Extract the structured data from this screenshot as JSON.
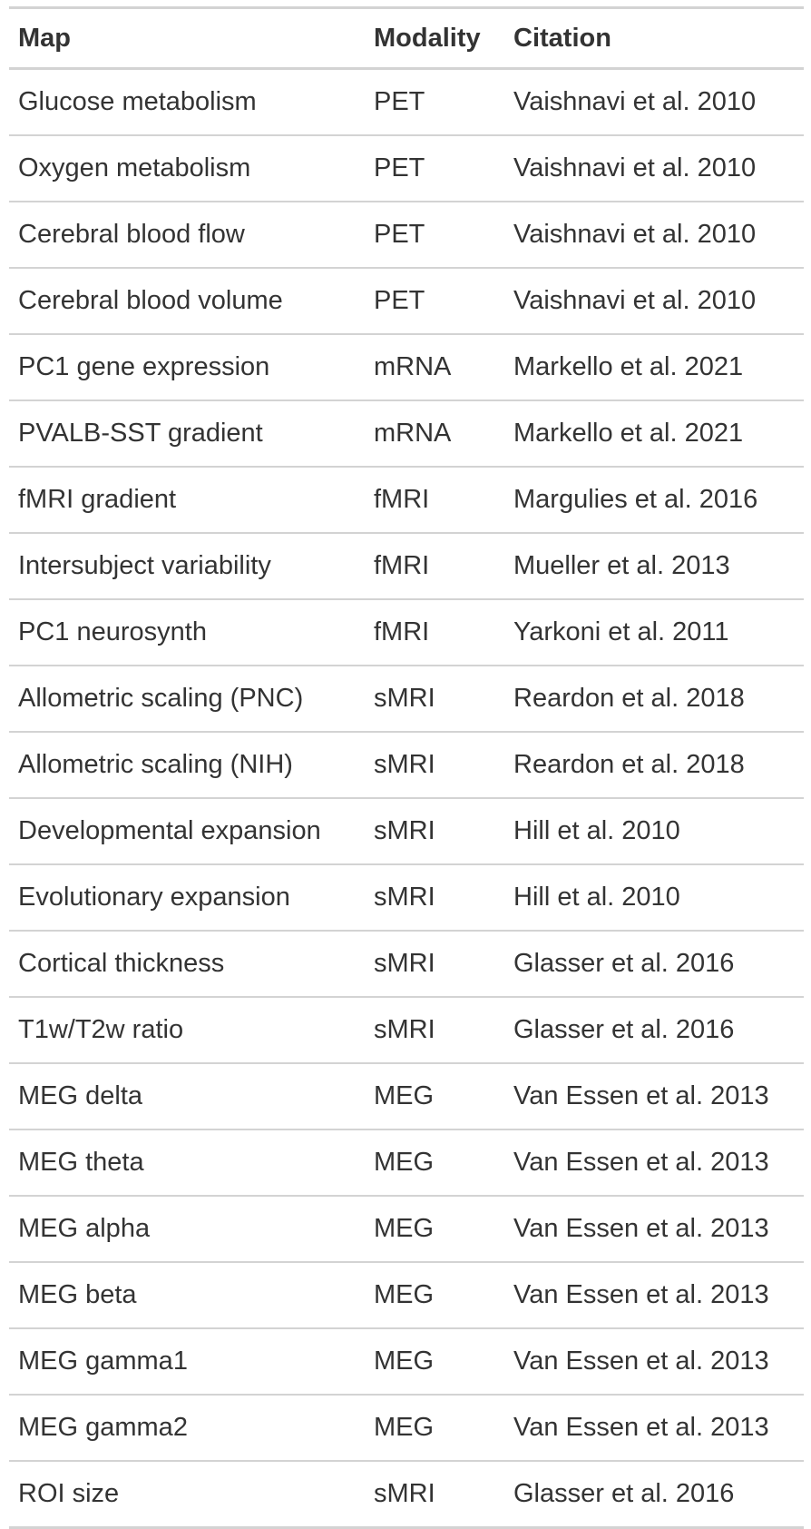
{
  "table": {
    "headers": [
      "Map",
      "Modality",
      "Citation"
    ],
    "rows": [
      [
        "Glucose metabolism",
        "PET",
        "Vaishnavi et al. 2010"
      ],
      [
        "Oxygen metabolism",
        "PET",
        "Vaishnavi et al. 2010"
      ],
      [
        "Cerebral blood flow",
        "PET",
        "Vaishnavi et al. 2010"
      ],
      [
        "Cerebral blood volume",
        "PET",
        "Vaishnavi et al. 2010"
      ],
      [
        "PC1 gene expression",
        "mRNA",
        "Markello et al. 2021"
      ],
      [
        "PVALB-SST gradient",
        "mRNA",
        "Markello et al. 2021"
      ],
      [
        "fMRI gradient",
        "fMRI",
        "Margulies et al. 2016"
      ],
      [
        "Intersubject variability",
        "fMRI",
        "Mueller et al. 2013"
      ],
      [
        "PC1 neurosynth",
        "fMRI",
        "Yarkoni et al. 2011"
      ],
      [
        "Allometric scaling (PNC)",
        "sMRI",
        "Reardon et al. 2018"
      ],
      [
        "Allometric scaling (NIH)",
        "sMRI",
        "Reardon et al. 2018"
      ],
      [
        "Developmental expansion",
        "sMRI",
        "Hill et al. 2010"
      ],
      [
        "Evolutionary expansion",
        "sMRI",
        "Hill et al. 2010"
      ],
      [
        "Cortical thickness",
        "sMRI",
        "Glasser et al. 2016"
      ],
      [
        "T1w/T2w ratio",
        "sMRI",
        "Glasser et al. 2016"
      ],
      [
        "MEG delta",
        "MEG",
        "Van Essen et al. 2013"
      ],
      [
        "MEG theta",
        "MEG",
        "Van Essen et al. 2013"
      ],
      [
        "MEG alpha",
        "MEG",
        "Van Essen et al. 2013"
      ],
      [
        "MEG beta",
        "MEG",
        "Van Essen et al. 2013"
      ],
      [
        "MEG gamma1",
        "MEG",
        "Van Essen et al. 2013"
      ],
      [
        "MEG gamma2",
        "MEG",
        "Van Essen et al. 2013"
      ],
      [
        "ROI size",
        "sMRI",
        "Glasser et al. 2016"
      ]
    ]
  },
  "colors": {
    "text": "#333333",
    "rule": "#d3d3d3",
    "background": "#ffffff"
  }
}
